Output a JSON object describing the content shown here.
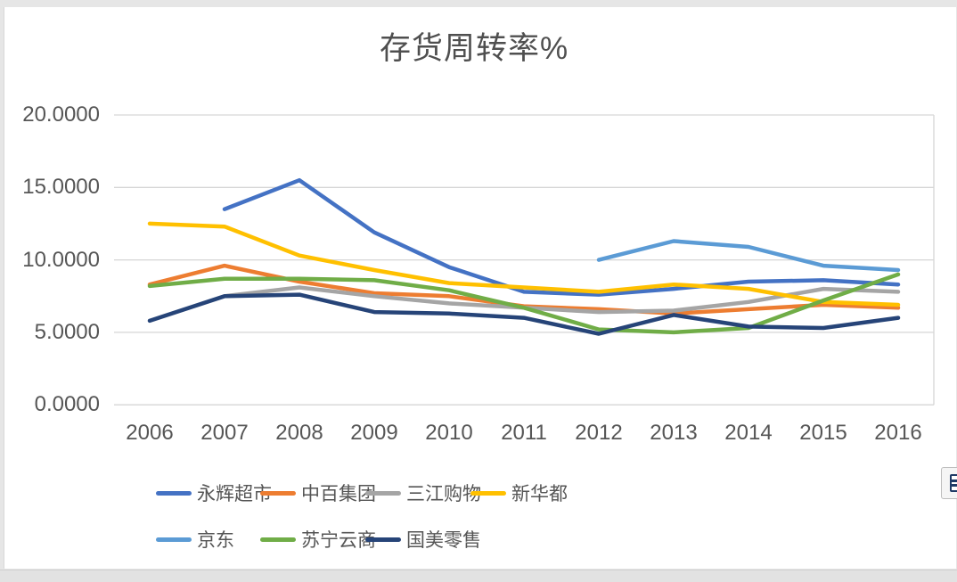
{
  "chart": {
    "title": "存货周转率%",
    "y_ticks": [
      {
        "label": "20.0000",
        "value": 20
      },
      {
        "label": "15.0000",
        "value": 15
      },
      {
        "label": "10.0000",
        "value": 10
      },
      {
        "label": "5.0000",
        "value": 5
      },
      {
        "label": "0.0000",
        "value": 0
      }
    ],
    "colors": {
      "gridline": "#d6d6d6",
      "plot_border": "#d6d6d6",
      "text": "#565656"
    }
  },
  "chart_data": {
    "type": "line",
    "title": "存货周转率%",
    "categories": [
      "2006",
      "2007",
      "2008",
      "2009",
      "2010",
      "2011",
      "2012",
      "2013",
      "2014",
      "2015",
      "2016"
    ],
    "series": [
      {
        "name": "永辉超市",
        "color": "#4472C4",
        "values": [
          null,
          13.5,
          15.5,
          11.9,
          9.5,
          7.8,
          7.6,
          8.0,
          8.5,
          8.6,
          8.3
        ]
      },
      {
        "name": "中百集团",
        "color": "#ED7D31",
        "values": [
          8.3,
          9.6,
          8.5,
          7.7,
          7.5,
          6.8,
          6.6,
          6.3,
          6.6,
          6.9,
          6.7
        ]
      },
      {
        "name": "三江购物",
        "color": "#A5A5A5",
        "values": [
          null,
          7.5,
          8.1,
          7.5,
          7.0,
          6.7,
          6.4,
          6.5,
          7.1,
          8.0,
          7.8
        ]
      },
      {
        "name": "新华都",
        "color": "#FFC000",
        "values": [
          12.5,
          12.3,
          10.3,
          9.3,
          8.4,
          8.1,
          7.8,
          8.3,
          8.0,
          7.1,
          6.9
        ]
      },
      {
        "name": "京东",
        "color": "#5B9BD5",
        "values": [
          null,
          null,
          null,
          null,
          null,
          null,
          10.0,
          11.3,
          10.9,
          9.6,
          9.3
        ]
      },
      {
        "name": "苏宁云商",
        "color": "#70AD47",
        "values": [
          8.2,
          8.7,
          8.7,
          8.6,
          7.9,
          6.7,
          5.2,
          5.0,
          5.3,
          7.2,
          9.0
        ]
      },
      {
        "name": "国美零售",
        "color": "#264478",
        "values": [
          5.8,
          7.5,
          7.6,
          6.4,
          6.3,
          6.0,
          4.9,
          6.2,
          5.4,
          5.3,
          6.0
        ]
      }
    ],
    "ylim": [
      0,
      20
    ],
    "y_tick_step": 5,
    "grid": true,
    "legend_position": "bottom",
    "legend_rows": [
      [
        0,
        1,
        2,
        3
      ],
      [
        4,
        5,
        6
      ]
    ]
  },
  "side_button": {
    "icon": "paste-chart-icon"
  }
}
